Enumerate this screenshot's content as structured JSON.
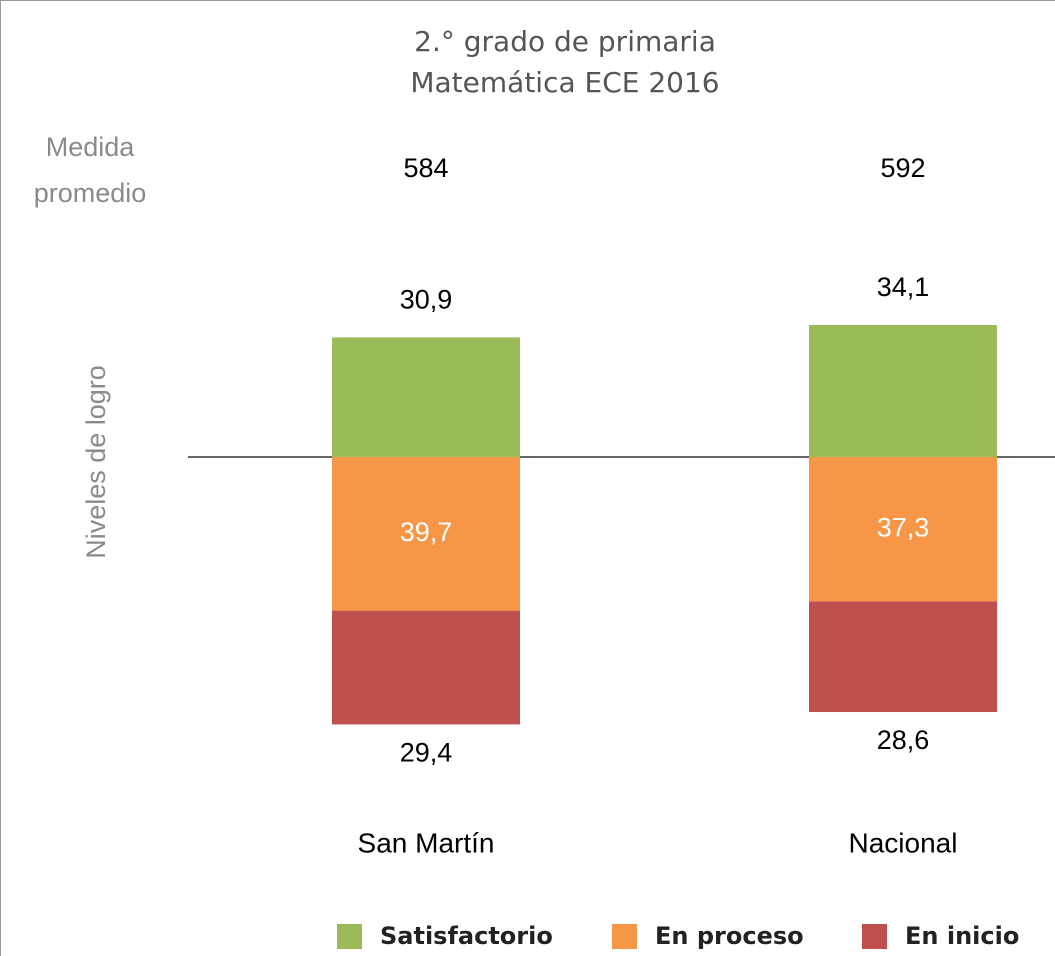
{
  "chart_data": {
    "type": "bar",
    "title": [
      "2.° grado de primaria",
      "Matemática ECE 2016"
    ],
    "y_label": "Niveles de logro",
    "categories": [
      "San Martín",
      "Nacional"
    ],
    "mean_score": {
      "label": "Medida promedio",
      "values": [
        584,
        592
      ]
    },
    "series": [
      {
        "name": "Satisfactorio",
        "color": "#9bbb59",
        "values": [
          30.9,
          34.1
        ],
        "value_labels": [
          "30,9",
          "34,1"
        ]
      },
      {
        "name": "En proceso",
        "color": "#f79646",
        "values": [
          39.7,
          37.3
        ],
        "value_labels": [
          "39,7",
          "37,3"
        ]
      },
      {
        "name": "En inicio",
        "color": "#c0504d",
        "values": [
          29.4,
          28.6
        ],
        "value_labels": [
          "29,4",
          "28,6"
        ]
      }
    ]
  }
}
